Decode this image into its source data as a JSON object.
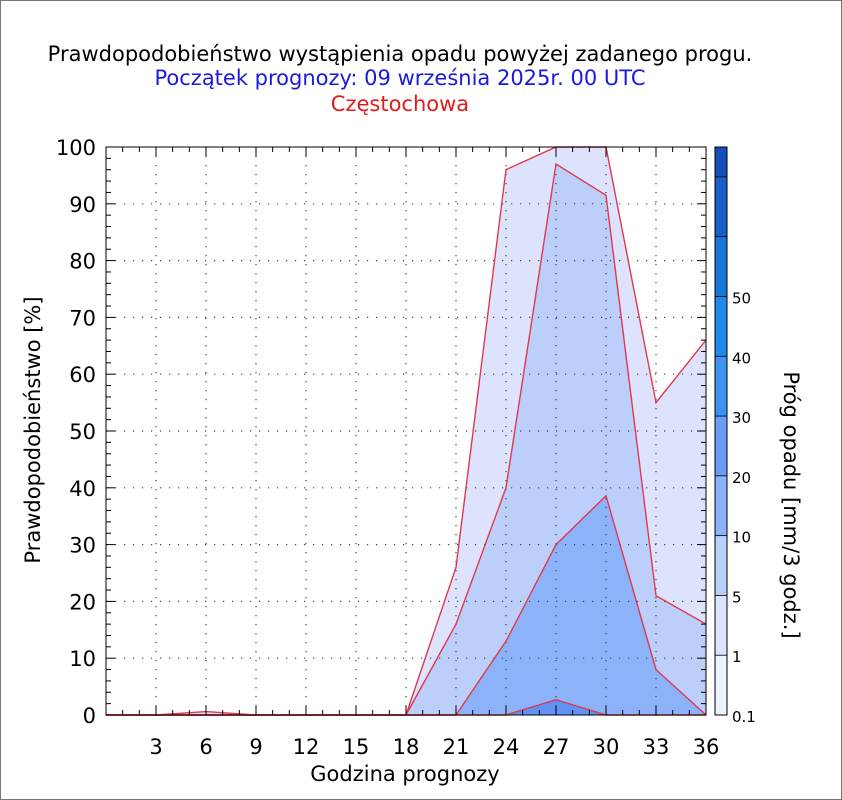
{
  "title": "Prawdopodobieństwo wystąpienia opadu powyżej zadanego progu.",
  "subtitle": "Początek prognozy: 09 września 2025r. 00 UTC",
  "location": "Częstochowa",
  "colors": {
    "title": "#000000",
    "subtitle": "#1a1ad8",
    "location": "#e11b1b",
    "outline": "#e0394c",
    "band_0_1": "#dde3fc",
    "band_1": "#bccefa",
    "band_5": "#8cb2fa"
  },
  "chart_data": {
    "type": "area",
    "title": "Prawdopodobieństwo wystąpienia opadu powyżej zadanego progu.",
    "subtitle": "Początek prognozy: 09 września 2025r. 00 UTC",
    "location": "Częstochowa",
    "xlabel": "Godzina prognozy",
    "ylabel": "Prawdopodobieństwo [%]",
    "xlim": [
      0,
      36
    ],
    "ylim": [
      0,
      100
    ],
    "xticks": [
      3,
      6,
      9,
      12,
      15,
      18,
      21,
      24,
      27,
      30,
      33,
      36
    ],
    "yticks": [
      0,
      10,
      20,
      30,
      40,
      50,
      60,
      70,
      80,
      90,
      100
    ],
    "grid": true,
    "x": [
      0,
      3,
      6,
      9,
      12,
      15,
      18,
      21,
      24,
      27,
      30,
      33,
      36
    ],
    "series": [
      {
        "threshold": 0.1,
        "color": "#dde3fc",
        "values": [
          0,
          0,
          0.6,
          0,
          0,
          0,
          0,
          26,
          96,
          100,
          100,
          55,
          66
        ]
      },
      {
        "threshold": 1,
        "color": "#bccefa",
        "values": [
          0,
          0,
          0,
          0,
          0,
          0,
          0,
          16,
          40,
          97,
          91.5,
          21,
          16
        ]
      },
      {
        "threshold": 5,
        "color": "#8cb2fa",
        "values": [
          0,
          0,
          0,
          0,
          0,
          0,
          0,
          0,
          13,
          30,
          38.6,
          8,
          0
        ]
      },
      {
        "threshold": 10,
        "color": "#5f93f5",
        "values": [
          0,
          0,
          0,
          0,
          0,
          0,
          0,
          0,
          0,
          2.7,
          0,
          0,
          0
        ]
      }
    ],
    "colorbar": {
      "label": "Próg opadu [mm/3 godz.]",
      "levels": [
        {
          "label": "0.1",
          "color": "#eef1fe"
        },
        {
          "label": "1",
          "color": "#dde3fc"
        },
        {
          "label": "5",
          "color": "#bccefa"
        },
        {
          "label": "10",
          "color": "#8cb2fa"
        },
        {
          "label": "20",
          "color": "#6c9df6"
        },
        {
          "label": "30",
          "color": "#3c94f0"
        },
        {
          "label": "40",
          "color": "#1e8ae9"
        },
        {
          "label": "50",
          "color": "#1777d8"
        },
        {
          "label": "",
          "color": "#1c5ec9"
        },
        {
          "label": "",
          "color": "#144fba"
        }
      ]
    }
  }
}
